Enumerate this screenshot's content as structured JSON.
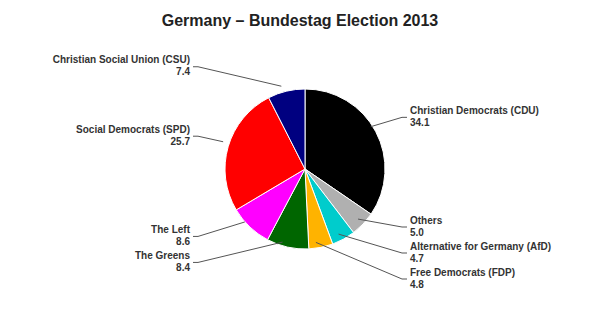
{
  "chart_data": {
    "type": "pie",
    "title": "Germany – Bundestag Election 2013",
    "categories": [
      "Christian Democrats (CDU)",
      "Others",
      "Alternative for Germany (AfD)",
      "Free Democrats (FDP)",
      "The Greens",
      "The Left",
      "Social Democrats (SPD)",
      "Christian Social Union (CSU)"
    ],
    "values": [
      34.1,
      5.0,
      4.7,
      4.8,
      8.4,
      8.6,
      25.7,
      7.4
    ],
    "value_labels": [
      "34.1",
      "5.0",
      "4.7",
      "4.8",
      "8.4",
      "8.6",
      "25.7",
      "7.4"
    ],
    "colors": [
      "#000000",
      "#B0B0B0",
      "#00CCCC",
      "#FFB300",
      "#006600",
      "#FF00FF",
      "#FF0000",
      "#000080"
    ],
    "data_labels": true
  }
}
